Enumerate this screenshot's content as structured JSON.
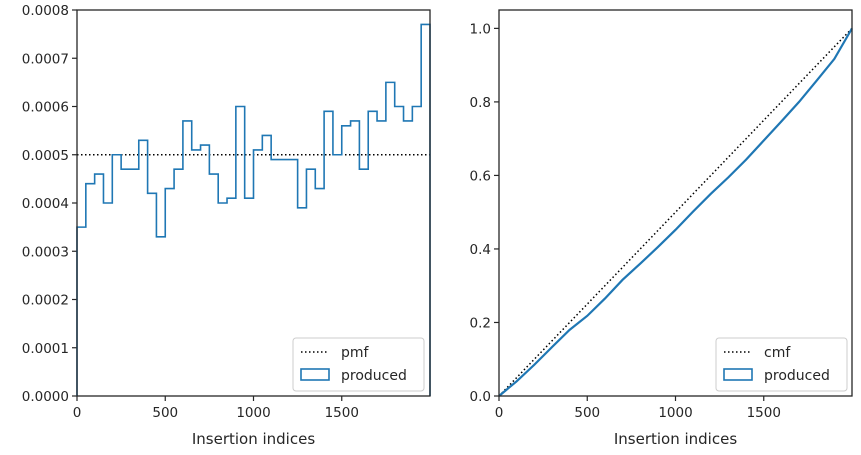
{
  "chart_data": [
    {
      "type": "line",
      "subtype": "step-histogram",
      "xlabel": "Insertion indices",
      "ylabel": "",
      "xlim": [
        0,
        2000
      ],
      "ylim": [
        0,
        0.0008
      ],
      "xticks": [
        0,
        500,
        1000,
        1500
      ],
      "xtick_labels": [
        "0",
        "500",
        "1000",
        "1500"
      ],
      "yticks": [
        0,
        0.0001,
        0.0002,
        0.0003,
        0.0004,
        0.0005,
        0.0006,
        0.0007,
        0.0008
      ],
      "ytick_labels": [
        "0.0000",
        "0.0001",
        "0.0002",
        "0.0003",
        "0.0004",
        "0.0005",
        "0.0006",
        "0.0007",
        "0.0008"
      ],
      "grid": false,
      "legend_position": "lower-right",
      "series": [
        {
          "name": "pmf",
          "style": "dotted",
          "color": "#000000",
          "x": [
            0,
            2000
          ],
          "y": [
            0.0005,
            0.0005
          ]
        },
        {
          "name": "produced",
          "style": "step",
          "color": "#1f77b4",
          "bin_edges": [
            0,
            50,
            100,
            150,
            200,
            250,
            300,
            350,
            400,
            450,
            500,
            550,
            600,
            650,
            700,
            750,
            800,
            850,
            900,
            950,
            1000,
            1050,
            1100,
            1150,
            1200,
            1250,
            1300,
            1350,
            1400,
            1450,
            1500,
            1550,
            1600,
            1650,
            1700,
            1750,
            1800,
            1850,
            1900,
            1950,
            2000
          ],
          "values": [
            0.00035,
            0.00044,
            0.00046,
            0.0004,
            0.0005,
            0.00047,
            0.00047,
            0.00053,
            0.00042,
            0.00033,
            0.00043,
            0.00047,
            0.00057,
            0.00051,
            0.00052,
            0.00046,
            0.0004,
            0.00041,
            0.0006,
            0.00041,
            0.00051,
            0.00054,
            0.00049,
            0.00049,
            0.00049,
            0.00039,
            0.00047,
            0.00043,
            0.00059,
            0.0005,
            0.00056,
            0.00057,
            0.00047,
            0.00059,
            0.00057,
            0.00065,
            0.0006,
            0.00057,
            0.0006,
            0.00077
          ]
        }
      ]
    },
    {
      "type": "line",
      "subtype": "step-cumulative",
      "xlabel": "Insertion indices",
      "ylabel": "",
      "xlim": [
        0,
        2000
      ],
      "ylim": [
        0,
        1.05
      ],
      "xticks": [
        0,
        500,
        1000,
        1500
      ],
      "xtick_labels": [
        "0",
        "500",
        "1000",
        "1500"
      ],
      "yticks": [
        0,
        0.2,
        0.4,
        0.6,
        0.8,
        1.0
      ],
      "ytick_labels": [
        "0.0",
        "0.2",
        "0.4",
        "0.6",
        "0.8",
        "1.0"
      ],
      "grid": false,
      "legend_position": "lower-right",
      "series": [
        {
          "name": "cmf",
          "style": "dotted",
          "color": "#000000",
          "x": [
            0,
            2000
          ],
          "y": [
            0,
            1.0
          ]
        },
        {
          "name": "produced",
          "style": "step",
          "color": "#1f77b4",
          "x": [
            0,
            100,
            200,
            300,
            400,
            500,
            600,
            700,
            800,
            900,
            1000,
            1100,
            1200,
            1300,
            1400,
            1500,
            1600,
            1700,
            1800,
            1900,
            2000
          ],
          "y": [
            0,
            0.04,
            0.085,
            0.133,
            0.18,
            0.218,
            0.265,
            0.316,
            0.36,
            0.405,
            0.452,
            0.502,
            0.55,
            0.595,
            0.643,
            0.695,
            0.747,
            0.8,
            0.858,
            0.917,
            1.0
          ]
        }
      ]
    }
  ]
}
